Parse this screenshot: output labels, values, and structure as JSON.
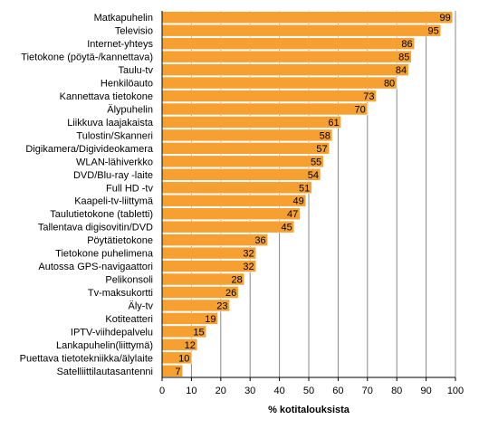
{
  "chart_data": {
    "type": "bar",
    "orientation": "horizontal",
    "categories": [
      "Matkapuhelin",
      "Televisio",
      "Internet-yhteys",
      "Tietokone (pöytä-/kannettava)",
      "Taulu-tv",
      "Henkilöauto",
      "Kannettava tietokone",
      "Älypuhelin",
      "Liikkuva laajakaista",
      "Tulostin/Skanneri",
      "Digikamera/Digivideokamera",
      "WLAN-lähiverkko",
      "DVD/Blu-ray -laite",
      "Full HD -tv",
      "Kaapeli-tv-liittymä",
      "Taulutietokone (tabletti)",
      "Tallentava digisovitin/DVD",
      "Pöytätietokone",
      "Tietokone puhelimena",
      "Autossa GPS-navigaattori",
      "Pelikonsoli",
      "Tv-maksukortti",
      "Äly-tv",
      "Kotiteatteri",
      "IPTV-viihdepalvelu",
      "Lankapuhelin(liittymä)",
      "Puettava tietotekniikka/älylaite",
      "Satelliittilautasantenni"
    ],
    "values": [
      99,
      95,
      86,
      85,
      84,
      80,
      73,
      70,
      61,
      58,
      57,
      55,
      54,
      51,
      49,
      47,
      45,
      36,
      32,
      32,
      28,
      26,
      23,
      19,
      15,
      12,
      10,
      7
    ],
    "xlabel": "% kotitalouksista",
    "ylabel": "",
    "xlim": [
      0,
      100
    ],
    "xticks": [
      0,
      10,
      20,
      30,
      40,
      50,
      60,
      70,
      80,
      90,
      100
    ],
    "grid": "vertical",
    "legend": "none",
    "colors": {
      "bar": "#f5a031",
      "bar_edge": "#ffffff",
      "grid": "#888888",
      "axis": "#000000"
    }
  }
}
